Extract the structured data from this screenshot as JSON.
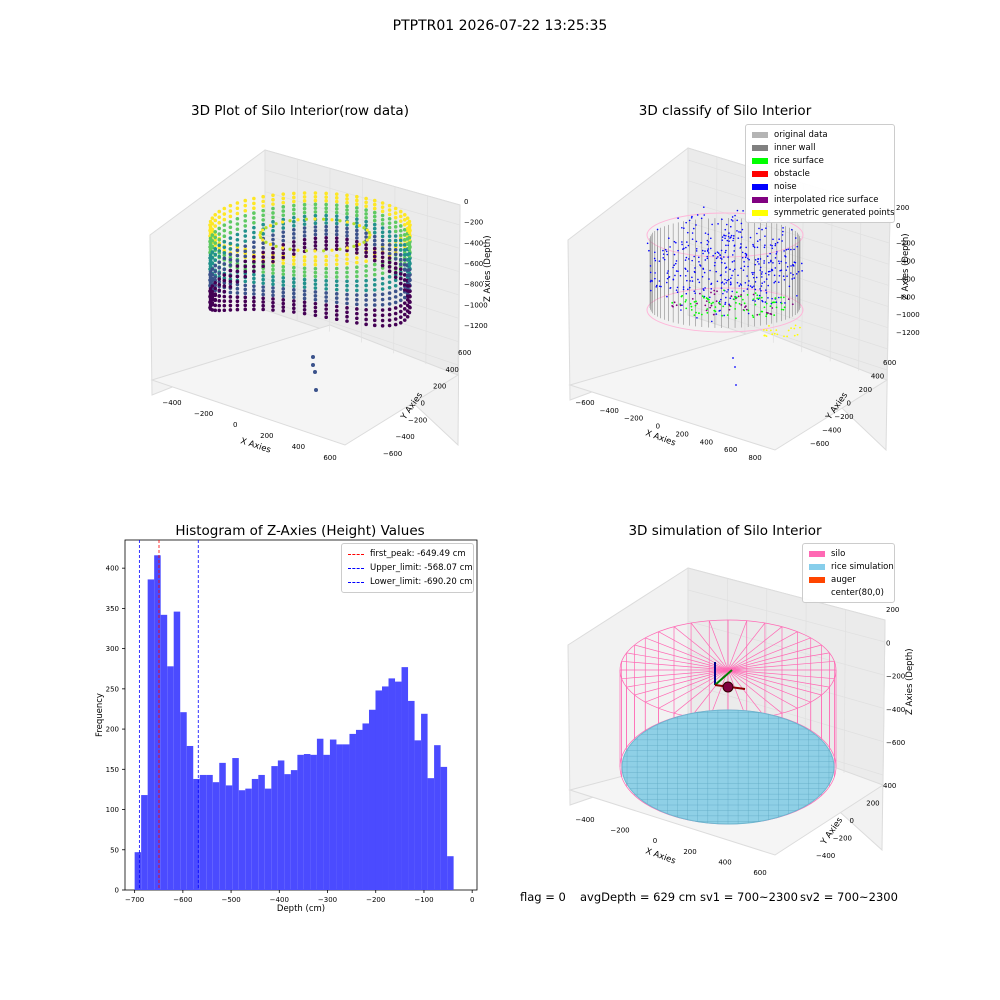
{
  "figure_title": "PTPTR01 2026-07-22 13:25:35",
  "colors": {
    "histogram_bar": "#4b4bff",
    "first_peak_line": "#ff0000",
    "limit_lines": "#0000ff",
    "pane": "#f2f2f2",
    "pane_edge": "#d8d8d8"
  },
  "panel_raw": {
    "title": "3D Plot of Silo Interior(row data)",
    "xlabel": "X Axies",
    "ylabel": "Y Axies",
    "zlabel": "Z Axies (Depth)",
    "x_ticks": [
      "−400",
      "−200",
      "0",
      "200",
      "400",
      "600"
    ],
    "y_ticks": [
      "−600",
      "−400",
      "−200",
      "0",
      "200",
      "400",
      "600"
    ],
    "z_ticks": [
      "0",
      "−200",
      "−400",
      "−600",
      "−800",
      "−1000",
      "−1200"
    ]
  },
  "panel_classify": {
    "title": "3D classify of Silo Interior",
    "xlabel": "X Axies",
    "ylabel": "Y Axies",
    "zlabel": "Z Axies (Depth)",
    "x_ticks": [
      "−600",
      "−400",
      "−200",
      "0",
      "200",
      "400",
      "600",
      "800"
    ],
    "y_ticks": [
      "−600",
      "−400",
      "−200",
      "0",
      "200",
      "400",
      "600"
    ],
    "z_ticks": [
      "200",
      "0",
      "−200",
      "−400",
      "−600",
      "−800",
      "−1000",
      "−1200"
    ],
    "legend": [
      {
        "label": "original data",
        "color": "#b4b4b4"
      },
      {
        "label": "inner wall",
        "color": "#808080"
      },
      {
        "label": "rice surface",
        "color": "#00ff00"
      },
      {
        "label": "obstacle",
        "color": "#ff0000"
      },
      {
        "label": "noise",
        "color": "#0000ff"
      },
      {
        "label": "interpolated rice surface",
        "color": "#800080"
      },
      {
        "label": "symmetric generated points",
        "color": "#ffff00"
      }
    ]
  },
  "panel_sim": {
    "title": "3D simulation of Silo Interior",
    "xlabel": "X Axies",
    "ylabel": "Y Axies",
    "zlabel": "Z Axies (Depth)",
    "x_ticks": [
      "−400",
      "−200",
      "0",
      "200",
      "400",
      "600"
    ],
    "y_ticks": [
      "−400",
      "−200",
      "0",
      "200",
      "400"
    ],
    "z_ticks": [
      "200",
      "0",
      "−200",
      "−400",
      "−600"
    ],
    "legend": [
      {
        "label": "silo",
        "color": "#ff69b4"
      },
      {
        "label": "rice simulation",
        "color": "#87ceeb"
      },
      {
        "label": "auger",
        "color": "#ff4500"
      },
      {
        "label": "center(80,0)",
        "color": ""
      }
    ]
  },
  "status_bar": {
    "flag": "flag = 0",
    "avg_depth": "avgDepth = 629 cm",
    "sv1": "sv1 = 700~2300",
    "sv2": "sv2 = 700~2300"
  },
  "chart_data": [
    {
      "type": "histogram",
      "title": "Histogram of Z-Axies (Height) Values",
      "xlabel": "Depth (cm)",
      "ylabel": "Frequency",
      "xlim": [
        -720,
        10
      ],
      "ylim": [
        0,
        435
      ],
      "x_ticks": [
        -700,
        -600,
        -500,
        -400,
        -300,
        -200,
        -100,
        0
      ],
      "x_tick_labels": [
        "−700",
        "−600",
        "−500",
        "−400",
        "−300",
        "−200",
        "−100",
        "0"
      ],
      "y_ticks": [
        0,
        50,
        100,
        150,
        200,
        250,
        300,
        350,
        400
      ],
      "bin_start": -700,
      "bin_width": 13.5,
      "counts": [
        47,
        118,
        386,
        416,
        342,
        278,
        346,
        221,
        179,
        138,
        143,
        143,
        134,
        158,
        130,
        164,
        124,
        126,
        138,
        143,
        126,
        154,
        161,
        144,
        149,
        168,
        169,
        168,
        188,
        168,
        187,
        181,
        181,
        194,
        199,
        207,
        224,
        248,
        253,
        263,
        259,
        277,
        235,
        186,
        219,
        139,
        180,
        153,
        42
      ],
      "lines": [
        {
          "label": "first_peak: -649.49 cm",
          "x": -649.49,
          "color": "#ff0000"
        },
        {
          "label": "Upper_limit: -568.07 cm",
          "x": -568.07,
          "color": "#0000ff"
        },
        {
          "label": "Lower_limit: -690.20 cm",
          "x": -690.2,
          "color": "#0000ff"
        }
      ],
      "legend_position": "upper-right"
    },
    {
      "type": "scatter3d",
      "title": "3D Plot of Silo Interior(row data)",
      "xlim": [
        -500,
        650
      ],
      "ylim": [
        -650,
        650
      ],
      "zlim": [
        -1300,
        50
      ],
      "description": "ring of vertical point columns colored by depth (viridis), top near 0, bottom near -900; a few outliers near z=-1300"
    },
    {
      "type": "scatter3d",
      "title": "3D classify of Silo Interior",
      "xlim": [
        -650,
        850
      ],
      "ylim": [
        -650,
        650
      ],
      "zlim": [
        -1250,
        250
      ]
    },
    {
      "type": "surface3d",
      "title": "3D simulation of Silo Interior",
      "xlim": [
        -450,
        650
      ],
      "ylim": [
        -450,
        450
      ],
      "zlim": [
        -700,
        300
      ]
    }
  ]
}
